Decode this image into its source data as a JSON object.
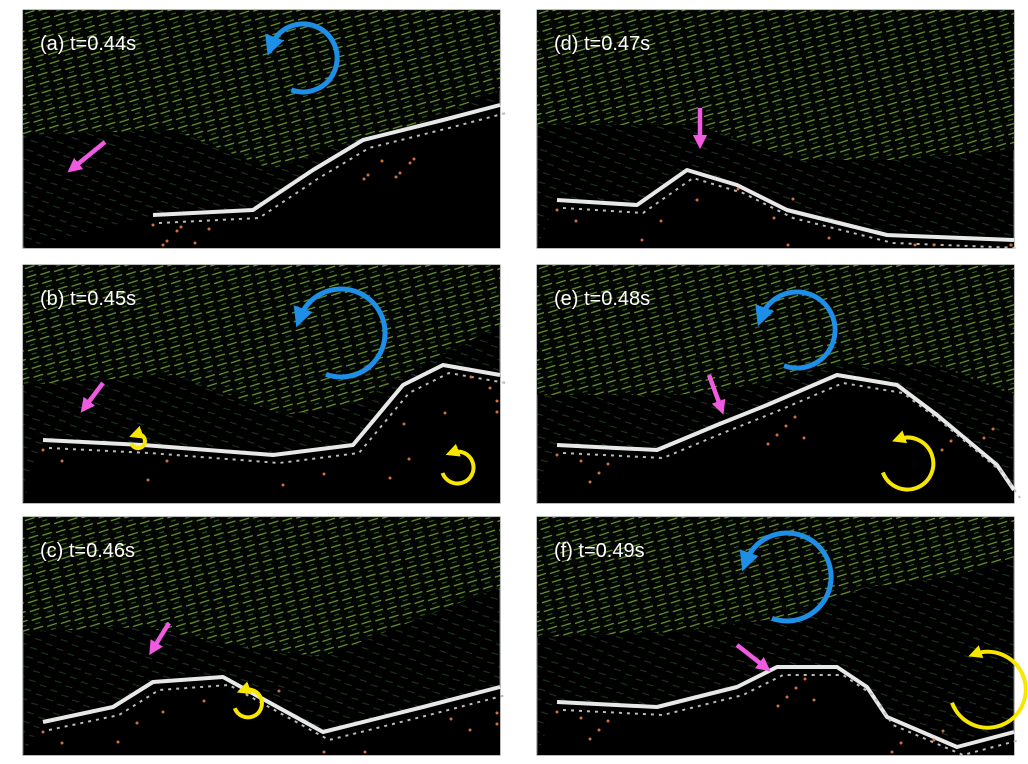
{
  "panels": [
    {
      "label": "(a) t=0.44s"
    },
    {
      "label": "(b) t=0.45s"
    },
    {
      "label": "(c) t=0.46s"
    },
    {
      "label": "(d) t=0.47s"
    },
    {
      "label": "(e) t=0.48s"
    },
    {
      "label": "(f) t=0.49s"
    }
  ]
}
